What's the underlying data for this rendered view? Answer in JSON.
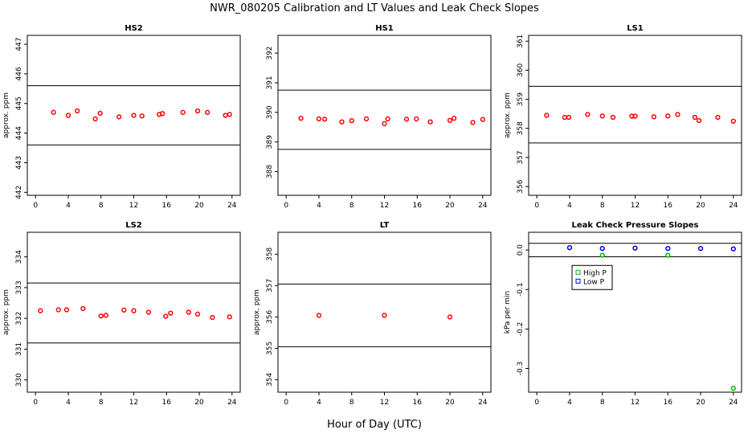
{
  "figure": {
    "title": "NWR_080205  Calibration and LT Values and Leak Check Slopes",
    "xlabel": "Hour of Day (UTC)"
  },
  "chart_data": [
    {
      "type": "scatter",
      "title": "HS2",
      "ylabel": "approx. ppm",
      "xlim": [
        -1,
        25
      ],
      "ylim": [
        441.9,
        447.3
      ],
      "xticks": [
        0,
        4,
        8,
        12,
        16,
        20,
        24
      ],
      "yticks": [
        442,
        443,
        444,
        445,
        446,
        447
      ],
      "hlines": [
        443.6,
        445.6
      ],
      "series": [
        {
          "color": "#ff0000",
          "shape": "circle",
          "x": [
            2.2,
            4.0,
            5.1,
            7.3,
            7.9,
            10.2,
            12.0,
            13.0,
            15.1,
            15.5,
            18.0,
            19.8,
            21.0,
            23.2,
            23.7
          ],
          "y": [
            444.7,
            444.6,
            444.75,
            444.48,
            444.67,
            444.55,
            444.6,
            444.58,
            444.63,
            444.66,
            444.7,
            444.75,
            444.7,
            444.6,
            444.63
          ]
        }
      ]
    },
    {
      "type": "scatter",
      "title": "HS1",
      "ylabel": "",
      "xlim": [
        -1,
        25
      ],
      "ylim": [
        387.2,
        392.6
      ],
      "xticks": [
        0,
        4,
        8,
        12,
        16,
        20,
        24
      ],
      "yticks": [
        388,
        389,
        390,
        391,
        392
      ],
      "hlines": [
        388.75,
        390.75
      ],
      "series": [
        {
          "color": "#ff0000",
          "shape": "circle",
          "x": [
            1.8,
            4.0,
            4.7,
            6.8,
            8.0,
            9.8,
            12.0,
            12.4,
            14.7,
            15.9,
            17.6,
            20.0,
            20.5,
            22.8,
            24.0
          ],
          "y": [
            389.8,
            389.78,
            389.77,
            389.68,
            389.72,
            389.78,
            389.62,
            389.78,
            389.77,
            389.78,
            389.68,
            389.73,
            389.8,
            389.66,
            389.76
          ]
        }
      ]
    },
    {
      "type": "scatter",
      "title": "LS1",
      "ylabel": "approx. ppm",
      "xlim": [
        -1,
        25
      ],
      "ylim": [
        355.7,
        361.2
      ],
      "xticks": [
        0,
        4,
        8,
        12,
        16,
        20,
        24
      ],
      "yticks": [
        356,
        357,
        358,
        359,
        360,
        361
      ],
      "hlines": [
        357.5,
        359.45
      ],
      "series": [
        {
          "color": "#ff0000",
          "shape": "circle",
          "x": [
            1.2,
            3.4,
            3.9,
            6.2,
            8.0,
            9.3,
            11.6,
            12.0,
            14.3,
            16.0,
            17.2,
            19.3,
            19.8,
            22.1,
            24.0
          ],
          "y": [
            358.45,
            358.38,
            358.38,
            358.48,
            358.43,
            358.38,
            358.42,
            358.42,
            358.4,
            358.43,
            358.48,
            358.38,
            358.27,
            358.38,
            358.25
          ]
        }
      ]
    },
    {
      "type": "scatter",
      "title": "LS2",
      "ylabel": "approx. ppm",
      "xlim": [
        -1,
        25
      ],
      "ylim": [
        329.6,
        334.8
      ],
      "xticks": [
        0,
        4,
        8,
        12,
        16,
        20,
        24
      ],
      "yticks": [
        330,
        331,
        332,
        333,
        334
      ],
      "hlines": [
        331.2,
        333.15
      ],
      "series": [
        {
          "color": "#ff0000",
          "shape": "circle",
          "x": [
            0.6,
            2.8,
            3.8,
            5.8,
            8.0,
            8.6,
            10.8,
            12.0,
            13.8,
            15.9,
            16.5,
            18.7,
            19.8,
            21.6,
            23.7
          ],
          "y": [
            332.25,
            332.28,
            332.28,
            332.32,
            332.08,
            332.1,
            332.27,
            332.25,
            332.2,
            332.07,
            332.17,
            332.2,
            332.14,
            332.03,
            332.05
          ]
        }
      ]
    },
    {
      "type": "scatter",
      "title": "LT",
      "ylabel": "approx. ppm",
      "xlim": [
        -1,
        25
      ],
      "ylim": [
        353.6,
        358.7
      ],
      "xticks": [
        0,
        4,
        8,
        12,
        16,
        20,
        24
      ],
      "yticks": [
        354,
        355,
        356,
        357,
        358
      ],
      "hlines": [
        355.05,
        357.05
      ],
      "series": [
        {
          "color": "#ff0000",
          "shape": "circle",
          "x": [
            4.0,
            12.0,
            20.0
          ],
          "y": [
            356.05,
            356.05,
            356.0
          ]
        }
      ]
    },
    {
      "type": "scatter",
      "title": "Leak Check Pressure Slopes",
      "ylabel": "kPa per min",
      "xlim": [
        -1,
        25
      ],
      "ylim": [
        -0.36,
        0.045
      ],
      "xticks": [
        0,
        4,
        8,
        12,
        16,
        20,
        24
      ],
      "yticks": [
        -0.3,
        -0.2,
        -0.1,
        0.0
      ],
      "ytick_labels": [
        "-0.3",
        "-0.2",
        "-0.1",
        "0.0"
      ],
      "hlines": [
        -0.017,
        0.017
      ],
      "legend": {
        "position": "top-left",
        "entries": [
          {
            "label": "High P",
            "color": "#00bb00"
          },
          {
            "label": "Low P",
            "color": "#0000dd"
          }
        ]
      },
      "series": [
        {
          "name": "High P",
          "color": "#00bb00",
          "shape": "circle",
          "x": [
            8.0,
            16.0,
            24.0
          ],
          "y": [
            -0.013,
            -0.013,
            -0.35
          ]
        },
        {
          "name": "Low P",
          "color": "#0000dd",
          "shape": "circle",
          "x": [
            4.0,
            8.0,
            12.0,
            16.0,
            20.0,
            24.0
          ],
          "y": [
            0.006,
            0.004,
            0.005,
            0.004,
            0.004,
            0.003
          ]
        }
      ]
    }
  ]
}
